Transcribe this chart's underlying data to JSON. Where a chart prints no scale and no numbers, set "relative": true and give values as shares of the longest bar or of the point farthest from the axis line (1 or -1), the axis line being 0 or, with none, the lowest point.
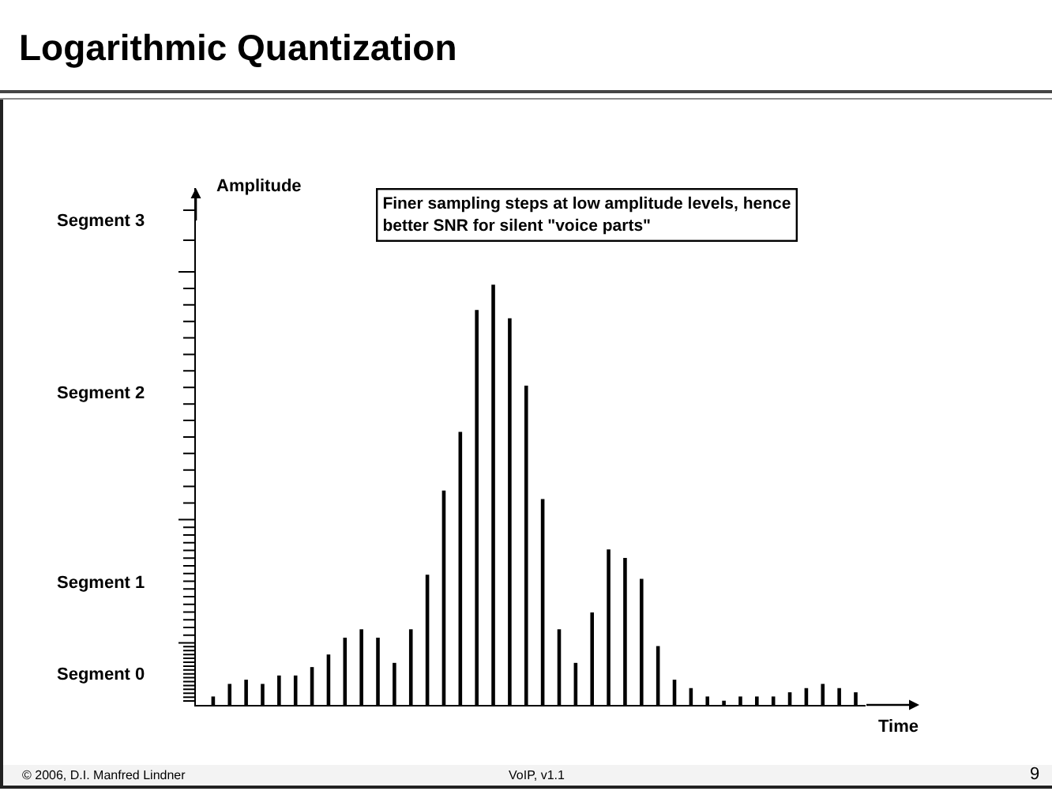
{
  "chart_data": {
    "type": "bar",
    "title": "Logarithmic Quantization",
    "xlabel": "Time",
    "relative": true,
    "color": "#000000",
    "categories": [
      null,
      null,
      null,
      null,
      null,
      null,
      null,
      null,
      null,
      null,
      null,
      null,
      null,
      null,
      null,
      null,
      null,
      null,
      null,
      null,
      null,
      null,
      null,
      null,
      null,
      null,
      null,
      null,
      null,
      null,
      null,
      null,
      null,
      null,
      null,
      null,
      null,
      null,
      null,
      null
    ],
    "values": [
      0.02,
      0.05,
      0.06,
      0.05,
      0.07,
      0.07,
      0.09,
      0.12,
      0.16,
      0.18,
      0.16,
      0.1,
      0.18,
      0.31,
      0.51,
      0.65,
      0.94,
      1,
      0.92,
      0.76,
      0.49,
      0.18,
      0.1,
      0.22,
      0.37,
      0.35,
      0.3,
      0.14,
      0.06,
      0.04,
      0.02,
      0.01,
      0.02,
      0.02,
      0.02,
      0.03,
      0.04,
      0.05,
      0.04,
      0.03
    ],
    "annotations": [
      "Segment 3",
      "Segment 2",
      "Segment 1",
      "Segment 0",
      "Finer sampling steps at low amplitude levels, hence better SNR for silent \"voice parts\"",
      "© 2006, D.I. Manfred Lindner",
      "VoIP, v1.1",
      "9",
      "Amplitude"
    ]
  }
}
